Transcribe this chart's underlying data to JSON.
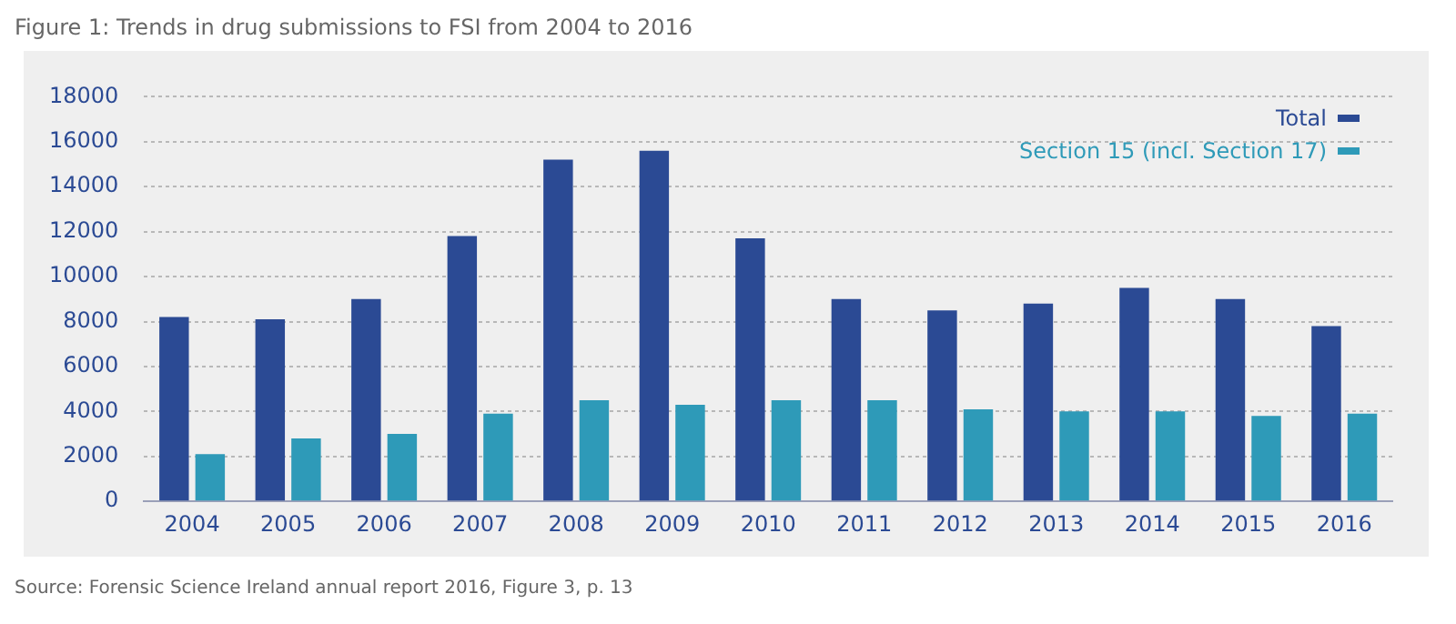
{
  "chart_data": {
    "type": "bar",
    "title": "Figure 1: Trends in drug submissions to FSI from 2004 to 2016",
    "categories": [
      "2004",
      "2005",
      "2006",
      "2007",
      "2008",
      "2009",
      "2010",
      "2011",
      "2012",
      "2013",
      "2014",
      "2015",
      "2016"
    ],
    "series": [
      {
        "name": "Total",
        "color": "#2b4a94",
        "values": [
          8200,
          8100,
          9000,
          11800,
          15200,
          15600,
          11700,
          9000,
          8500,
          8800,
          9500,
          9000,
          7800
        ]
      },
      {
        "name": "Section 15 (incl. Section 17)",
        "color": "#2e9ab8",
        "values": [
          2100,
          2800,
          3000,
          3900,
          4500,
          4300,
          4500,
          4500,
          4100,
          4000,
          4000,
          3800,
          3900
        ]
      }
    ],
    "ylim": [
      0,
      18000
    ],
    "yticks": [
      0,
      2000,
      4000,
      6000,
      8000,
      10000,
      12000,
      14000,
      16000,
      18000
    ],
    "grid": "y",
    "legend": "top right",
    "annotations": [
      "Source: Forensic Science Ireland annual report 2016, Figure 3, p. 13"
    ]
  }
}
